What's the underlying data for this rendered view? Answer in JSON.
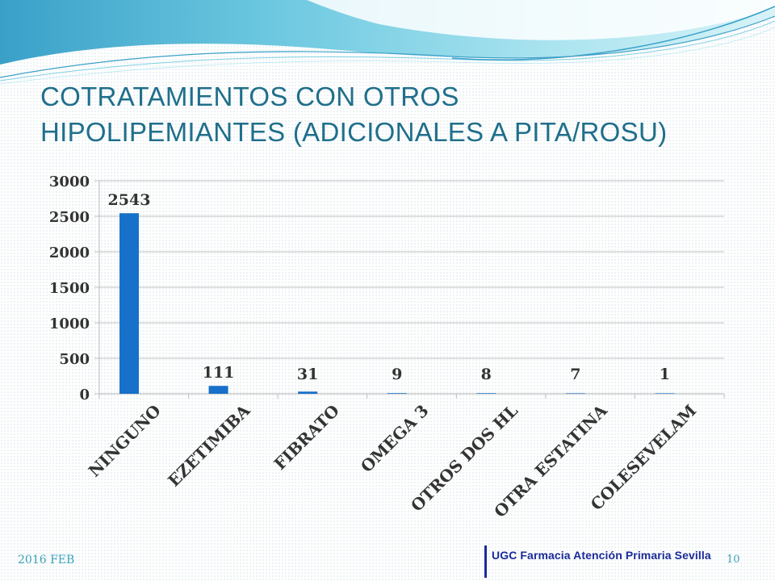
{
  "slide": {
    "title_line1": "COTRATAMIENTOS CON OTROS",
    "title_line2": "HIPOLIPEMIANTES (ADICIONALES A PITA/ROSU)",
    "footer_date": "2016 FEB",
    "footer_brand": "UGC Farmacia Atención Primaria Sevilla",
    "page_number": "10"
  },
  "colors": {
    "title": "#1f6f8b",
    "bar": "#1770c9",
    "grid": "#bfbfbf",
    "footer_text": "#3aa0b8",
    "brand": "#1a2a9a",
    "wave_dark": "#3aa0c8",
    "wave_light": "#a8e3ef"
  },
  "chart_data": {
    "type": "bar",
    "categories": [
      "NINGUNO",
      "EZETIMIBA",
      "FIBRATO",
      "OMEGA 3",
      "OTROS DOS HL",
      "OTRA ESTATINA",
      "COLESEVELAM"
    ],
    "values": [
      2543,
      111,
      31,
      9,
      8,
      7,
      1
    ],
    "data_labels": [
      "2543",
      "111",
      "31",
      "9",
      "8",
      "7",
      "1"
    ],
    "yticks": [
      0,
      500,
      1000,
      1500,
      2000,
      2500,
      3000
    ],
    "ytick_labels": [
      "0",
      "500",
      "1000",
      "1500",
      "2000",
      "2500",
      "3000"
    ],
    "ylim": [
      0,
      3000
    ],
    "grid": true,
    "legend": false,
    "title": "",
    "xlabel": "",
    "ylabel": ""
  }
}
